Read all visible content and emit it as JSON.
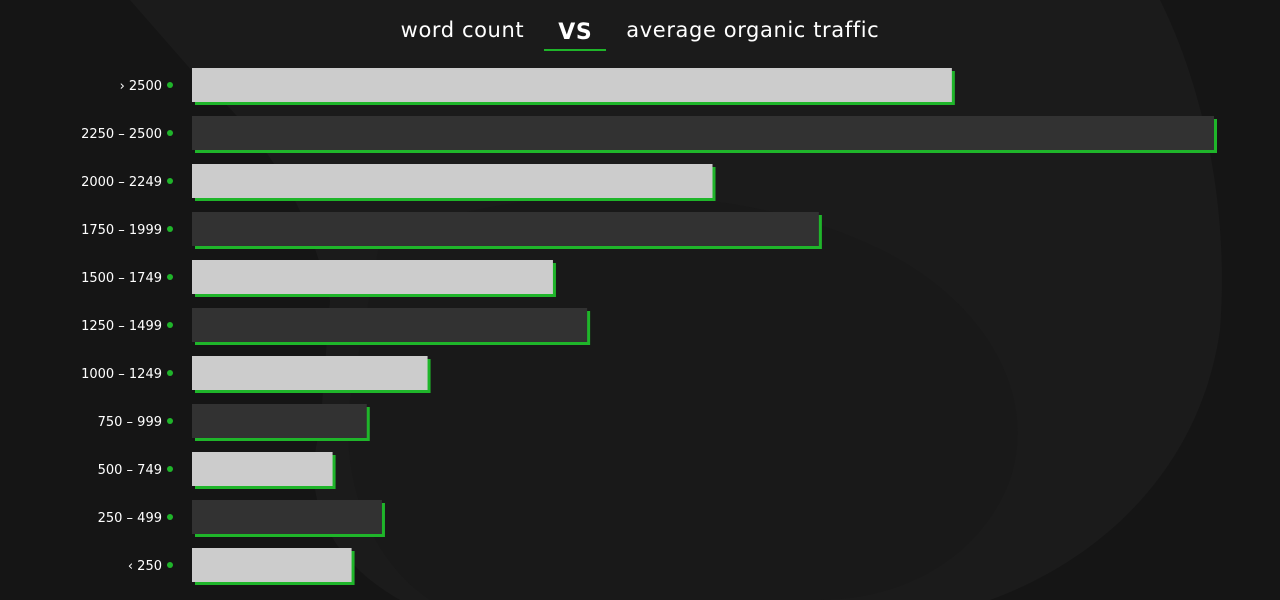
{
  "chart_data": {
    "type": "bar",
    "orientation": "horizontal",
    "title": {
      "left": "word count",
      "vs": "VS",
      "right": "average organic traffic"
    },
    "categories": [
      "› 2500",
      "2250 – 2500",
      "2000 – 2249",
      "1750 – 1999",
      "1500 – 1749",
      "1250 – 1499",
      "1000 – 1249",
      "750 – 999",
      "500 – 749",
      "250 – 499",
      "‹ 250"
    ],
    "values": [
      100,
      134.5,
      68.5,
      82.5,
      47.5,
      52,
      31,
      23,
      18.5,
      25,
      21
    ],
    "xlim": [
      0,
      134.5
    ],
    "grid": false,
    "legend": "none",
    "bar_colors": [
      "#cccccc",
      "#323232"
    ],
    "accent_color": "#1fb52a"
  }
}
